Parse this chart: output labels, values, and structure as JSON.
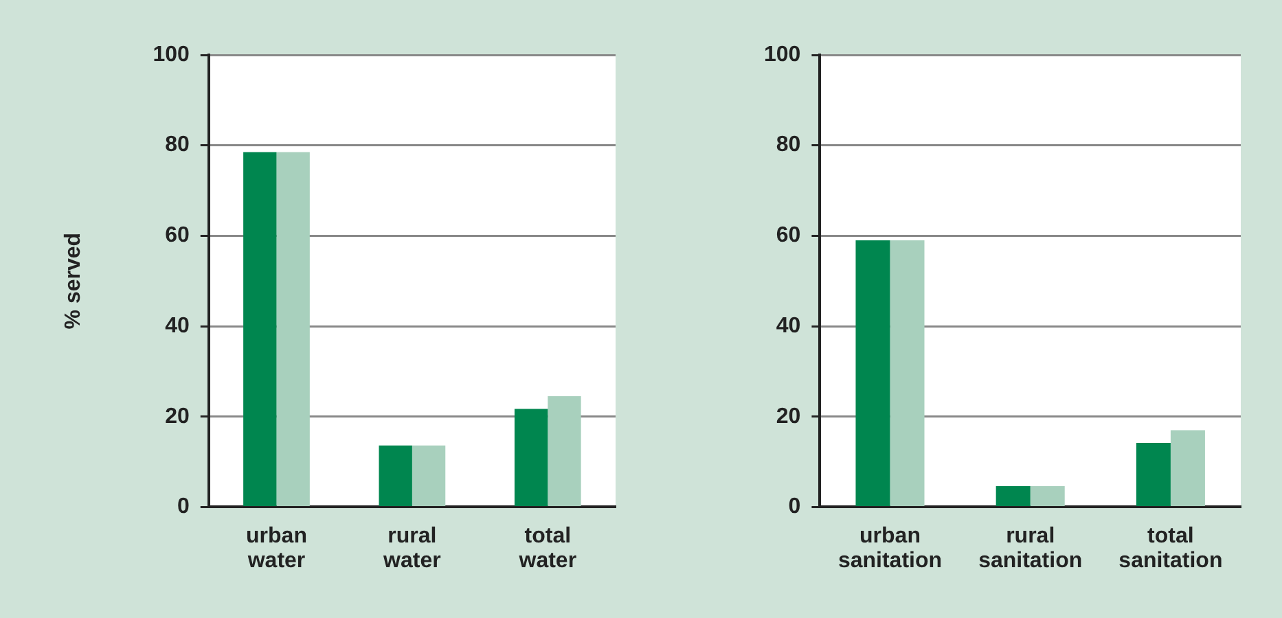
{
  "chart_data": [
    {
      "type": "bar",
      "ylabel": "% served",
      "categories": [
        "urban water",
        "rural water",
        "total water"
      ],
      "series": [
        {
          "color": "#00864f",
          "values": [
            78.5,
            13.6,
            21.7
          ]
        },
        {
          "color": "#a8d0bd",
          "values": [
            78.5,
            13.6,
            24.5
          ]
        }
      ],
      "ylim": [
        0,
        100
      ],
      "yticks": [
        0,
        20,
        40,
        60,
        80,
        100
      ],
      "grid": "y"
    },
    {
      "type": "bar",
      "categories": [
        "urban sanitation",
        "rural sanitation",
        "total sanitation"
      ],
      "series": [
        {
          "color": "#00864f",
          "values": [
            59,
            4.6,
            14.2
          ]
        },
        {
          "color": "#a8d0bd",
          "values": [
            59,
            4.6,
            17
          ]
        }
      ],
      "ylim": [
        0,
        100
      ],
      "yticks": [
        0,
        20,
        40,
        60,
        80,
        100
      ],
      "grid": "y"
    }
  ]
}
